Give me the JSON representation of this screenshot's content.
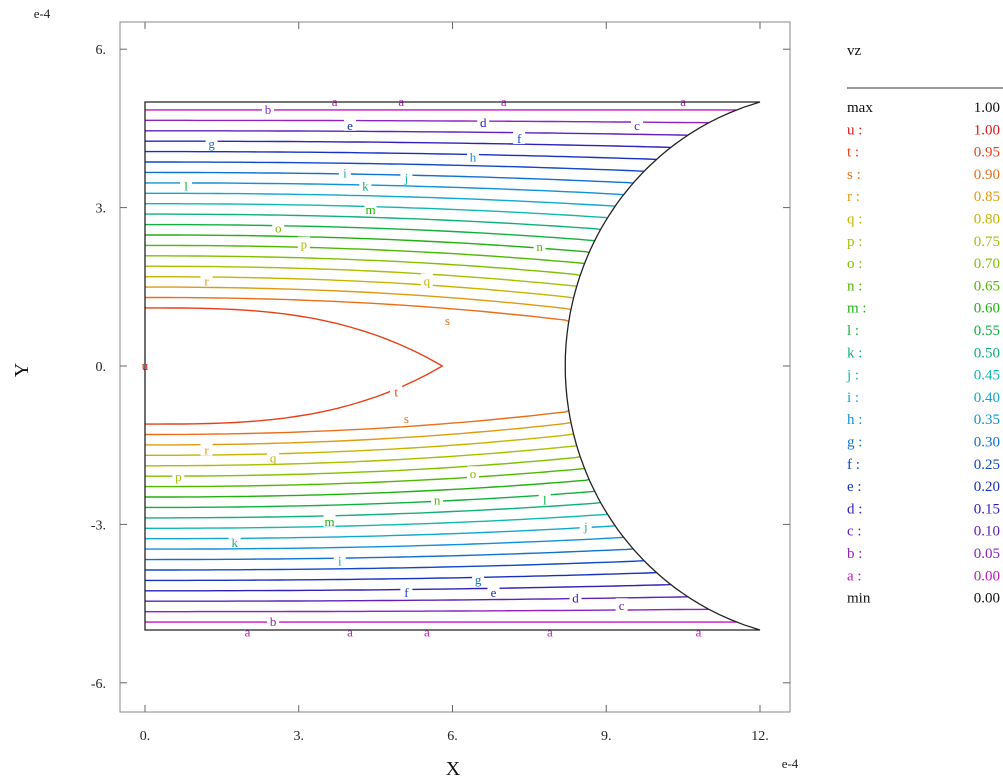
{
  "chart_data": {
    "type": "contour",
    "variable": "vz",
    "xlabel": "X",
    "ylabel": "Y",
    "x_exponent": "e-4",
    "y_exponent": "e-4",
    "xlim": [
      -1.4,
      12.6
    ],
    "ylim": [
      -7.3,
      7.0
    ],
    "x_ticks": [
      0,
      3,
      6,
      9,
      12
    ],
    "x_tick_labels": [
      "0.",
      "3.",
      "6.",
      "9.",
      "12."
    ],
    "y_ticks": [
      6,
      3,
      0,
      -3,
      -6
    ],
    "y_tick_labels": [
      "6.",
      "3.",
      "0.",
      "-3.",
      "-6."
    ],
    "domain": {
      "x_left": 0,
      "x_right": 12,
      "y_bottom": -5,
      "y_top": 5,
      "arc_vertex_x": 8.2
    },
    "legend": {
      "max": {
        "label": "max",
        "value": "1.00"
      },
      "min": {
        "label": "min",
        "value": "0.00"
      },
      "levels": [
        {
          "key": "u",
          "value": "1.00",
          "color": "#e01818"
        },
        {
          "key": "t",
          "value": "0.95",
          "color": "#e8401a"
        },
        {
          "key": "s",
          "value": "0.90",
          "color": "#e8701c"
        },
        {
          "key": "r",
          "value": "0.85",
          "color": "#e09a10"
        },
        {
          "key": "q",
          "value": "0.80",
          "color": "#c8b400"
        },
        {
          "key": "p",
          "value": "0.75",
          "color": "#a8c000"
        },
        {
          "key": "o",
          "value": "0.70",
          "color": "#80c000"
        },
        {
          "key": "n",
          "value": "0.65",
          "color": "#50b800"
        },
        {
          "key": "m",
          "value": "0.60",
          "color": "#20b010"
        },
        {
          "key": "l",
          "value": "0.55",
          "color": "#10b040"
        },
        {
          "key": "k",
          "value": "0.50",
          "color": "#10b078"
        },
        {
          "key": "j",
          "value": "0.45",
          "color": "#10b8b0"
        },
        {
          "key": "i",
          "value": "0.40",
          "color": "#10a8d0"
        },
        {
          "key": "h",
          "value": "0.35",
          "color": "#1090d8"
        },
        {
          "key": "g",
          "value": "0.30",
          "color": "#1070d0"
        },
        {
          "key": "f",
          "value": "0.25",
          "color": "#1048c8"
        },
        {
          "key": "e",
          "value": "0.20",
          "color": "#1830c0"
        },
        {
          "key": "d",
          "value": "0.15",
          "color": "#3020b8"
        },
        {
          "key": "c",
          "value": "0.10",
          "color": "#6020b8"
        },
        {
          "key": "b",
          "value": "0.05",
          "color": "#9020c0"
        },
        {
          "key": "a",
          "value": "0.00",
          "color": "#c018c0"
        }
      ]
    }
  }
}
